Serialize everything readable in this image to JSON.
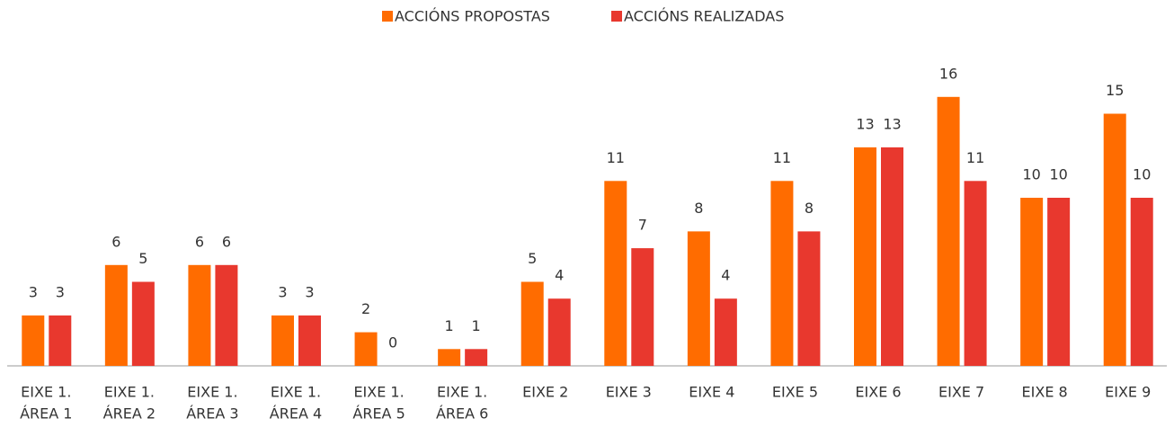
{
  "chart_data": {
    "type": "bar",
    "categories": [
      [
        "EIXE 1.",
        "ÁREA 1"
      ],
      [
        "EIXE 1.",
        "ÁREA 2"
      ],
      [
        "EIXE 1.",
        "ÁREA 3"
      ],
      [
        "EIXE 1.",
        "ÁREA 4"
      ],
      [
        "EIXE 1.",
        "ÁREA 5"
      ],
      [
        "EIXE 1.",
        "ÁREA 6"
      ],
      [
        "EIXE 2"
      ],
      [
        "EIXE 3"
      ],
      [
        "EIXE 4"
      ],
      [
        "EIXE 5"
      ],
      [
        "EIXE 6"
      ],
      [
        "EIXE 7"
      ],
      [
        "EIXE 8"
      ],
      [
        "EIXE 9"
      ]
    ],
    "series": [
      {
        "name": "ACCIÓNS PROPOSTAS",
        "color": "#ff6c00",
        "values": [
          3,
          6,
          6,
          3,
          2,
          1,
          5,
          11,
          8,
          11,
          13,
          16,
          10,
          15
        ]
      },
      {
        "name": "ACCIÓNS REALIZADAS",
        "color": "#e8382e",
        "values": [
          3,
          5,
          6,
          3,
          0,
          1,
          4,
          7,
          4,
          8,
          13,
          11,
          10,
          10
        ]
      }
    ],
    "ylim": [
      0,
      20
    ],
    "legend": "top"
  }
}
